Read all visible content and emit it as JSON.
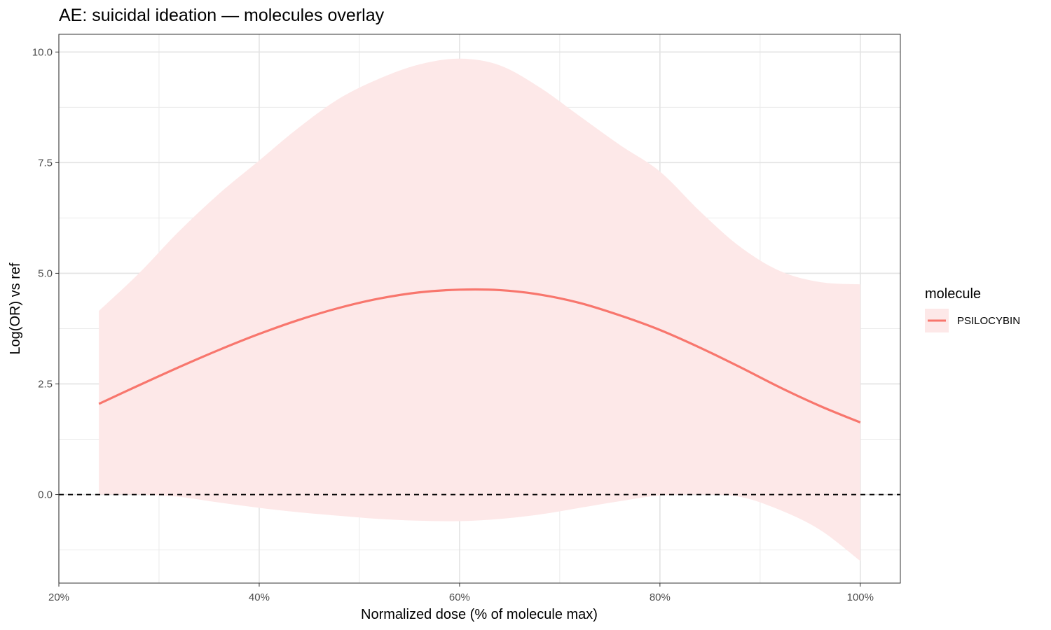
{
  "chart_data": {
    "type": "line",
    "title": "AE: suicidal ideation — molecules overlay",
    "xlabel": "Normalized dose (% of molecule max)",
    "ylabel": "Log(OR) vs ref",
    "xlim": [
      20,
      104
    ],
    "ylim": [
      -2.0,
      10.4
    ],
    "x_ticks": [
      20,
      40,
      60,
      80,
      100
    ],
    "x_tick_labels": [
      "20%",
      "40%",
      "60%",
      "80%",
      "100%"
    ],
    "y_ticks": [
      0,
      2.5,
      5,
      7.5,
      10
    ],
    "y_tick_labels": [
      "0.0",
      "2.5",
      "5.0",
      "7.5",
      "10.0"
    ],
    "grid": true,
    "reference_line": {
      "y": 0,
      "style": "dashed",
      "color": "#000000"
    },
    "legend": {
      "title": "molecule",
      "position": "right"
    },
    "series": [
      {
        "name": "PSILOCYBIN",
        "color": "#F8766D",
        "ribbon_color": "#FDE8E8",
        "x": [
          24,
          28,
          32,
          36,
          40,
          44,
          48,
          52,
          56,
          60,
          64,
          68,
          72,
          76,
          80,
          84,
          88,
          92,
          96,
          100
        ],
        "y": [
          2.05,
          2.47,
          2.88,
          3.27,
          3.63,
          3.95,
          4.22,
          4.43,
          4.57,
          4.63,
          4.62,
          4.52,
          4.33,
          4.05,
          3.72,
          3.32,
          2.88,
          2.42,
          2.0,
          1.63
        ],
        "lower": [
          0.0,
          0.0,
          -0.05,
          -0.18,
          -0.3,
          -0.4,
          -0.48,
          -0.55,
          -0.59,
          -0.6,
          -0.55,
          -0.45,
          -0.3,
          -0.15,
          -0.02,
          0.0,
          -0.05,
          -0.35,
          -0.8,
          -1.5
        ],
        "upper": [
          4.15,
          5.0,
          5.95,
          6.8,
          7.55,
          8.3,
          8.95,
          9.4,
          9.72,
          9.85,
          9.7,
          9.2,
          8.55,
          7.9,
          7.3,
          6.4,
          5.6,
          5.05,
          4.8,
          4.75
        ]
      }
    ]
  }
}
